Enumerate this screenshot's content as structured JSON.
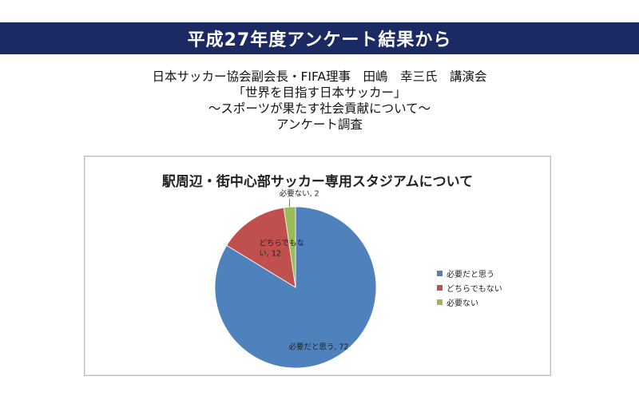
{
  "header": {
    "title": "平成27年度アンケート結果から",
    "bg_color": "#1b2a63"
  },
  "subtitle_lines": [
    "日本サッカー協会副会長・FIFA理事　田嶋　幸三氏　講演会",
    "「世界を目指す日本サッカー」",
    "～スポーツが果たす社会貢献について～",
    "アンケート調査"
  ],
  "chart_data": {
    "type": "pie",
    "title": "駅周辺・街中心部サッカー専用スタジアムについて",
    "categories": [
      "必要だと思う",
      "どちらでもない",
      "必要ない"
    ],
    "values": [
      72,
      12,
      2
    ],
    "colors": [
      "#4f81bd",
      "#c0504d",
      "#9bbb59"
    ],
    "data_labels": [
      "必要だと思う, 72",
      "どちらでもな\nい, 12",
      "必要ない, 2"
    ],
    "legend_position": "right"
  }
}
